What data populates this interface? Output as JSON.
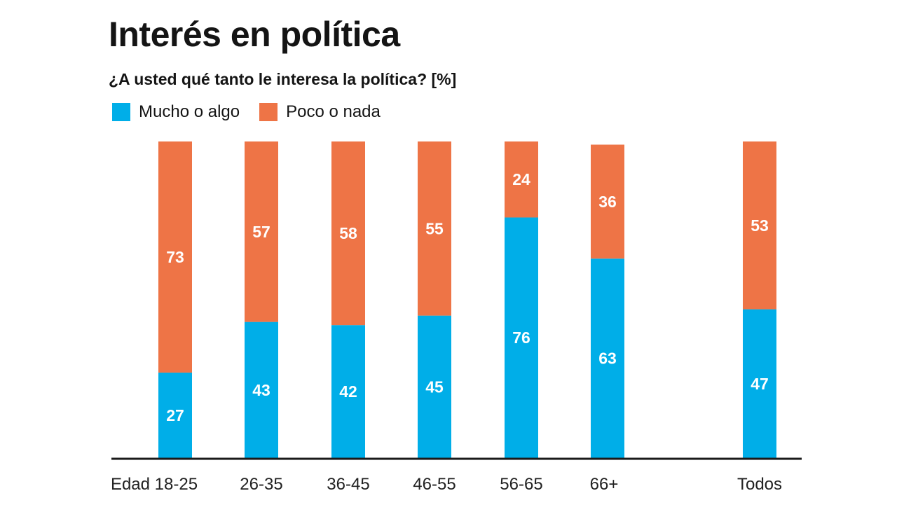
{
  "chart_data": {
    "type": "bar",
    "stacked": true,
    "title": "Interés en política",
    "subtitle": "¿A usted qué tanto le interesa la política?   [%]",
    "categories": [
      "Edad 18-25",
      "26-35",
      "36-45",
      "46-55",
      "56-65",
      "66+",
      "Todos"
    ],
    "series": [
      {
        "name": "Mucho o algo",
        "color": "#00aee8",
        "values": [
          27,
          43,
          42,
          45,
          76,
          63,
          47
        ]
      },
      {
        "name": "Poco o nada",
        "color": "#ee7446",
        "values": [
          73,
          57,
          58,
          55,
          24,
          36,
          53
        ]
      }
    ],
    "ylim": [
      0,
      100
    ],
    "grid": false,
    "legend_position": "top-left"
  }
}
